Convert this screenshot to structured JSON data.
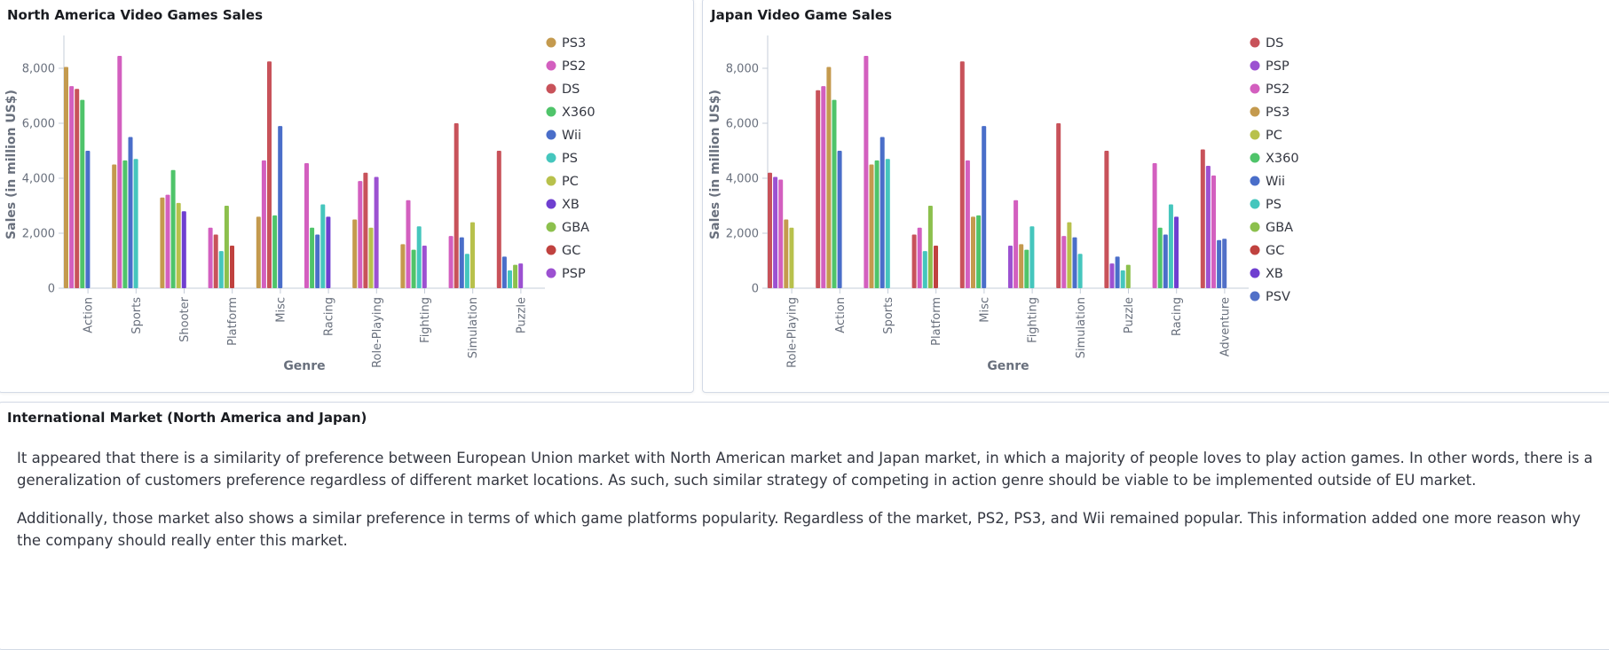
{
  "panels": {
    "na_title": "North America Video Games Sales",
    "jp_title": "Japan Video Game Sales",
    "intl_title": "International Market (North America and Japan)",
    "intl_paragraphs": [
      "It appeared that there is a similarity of preference between European Union market with North American market and Japan market, in which a majority of people loves to play action games. In other words, there is a generalization of customers preference regardless of different market locations. As such, such similar strategy of competing in action genre should be viable to be implemented outside of EU market.",
      "Additionally, those market also shows a similar preference in terms of which game platforms popularity. Regardless of the market, PS2, PS3, and Wii remained popular. This information added one more reason why the company should really enter this market."
    ]
  },
  "colors": {
    "PS3": "#c49a4e",
    "PS2": "#d35fbf",
    "DS": "#c8525a",
    "X360": "#4fc46a",
    "Wii": "#4a6ec9",
    "PS": "#45c6bd",
    "PC": "#b8c14c",
    "XB": "#6f3fd0",
    "GBA": "#8cc04d",
    "GC": "#c0423f",
    "PSP": "#9c51d1",
    "PSV": "#5170c8"
  },
  "chart_data": [
    {
      "type": "bar",
      "title": "North America Video Games Sales",
      "xlabel": "Genre",
      "ylabel": "Sales (in million US$)",
      "ylim": [
        0,
        9000
      ],
      "yticks": [
        0,
        2000,
        4000,
        6000,
        8000
      ],
      "ytick_labels": [
        "0",
        "2,000",
        "4,000",
        "6,000",
        "8,000"
      ],
      "categories": [
        "Action",
        "Sports",
        "Shooter",
        "Platform",
        "Misc",
        "Racing",
        "Role-Playing",
        "Fighting",
        "Simulation",
        "Puzzle"
      ],
      "legend": [
        "PS3",
        "PS2",
        "DS",
        "X360",
        "Wii",
        "PS",
        "PC",
        "XB",
        "GBA",
        "GC",
        "PSP"
      ],
      "legend_position": "right",
      "groups": [
        [
          [
            "PS3",
            8050
          ],
          [
            "PS2",
            7350
          ],
          [
            "DS",
            7250
          ],
          [
            "X360",
            6850
          ],
          [
            "Wii",
            5000
          ]
        ],
        [
          [
            "PS3",
            4500
          ],
          [
            "PS2",
            8450
          ],
          [
            "X360",
            4650
          ],
          [
            "Wii",
            5500
          ],
          [
            "PS",
            4700
          ]
        ],
        [
          [
            "PS3",
            3300
          ],
          [
            "PS2",
            3400
          ],
          [
            "X360",
            4300
          ],
          [
            "PC",
            3100
          ],
          [
            "XB",
            2800
          ]
        ],
        [
          [
            "PS2",
            2200
          ],
          [
            "DS",
            1950
          ],
          [
            "PS",
            1350
          ],
          [
            "GBA",
            3000
          ],
          [
            "GC",
            1550
          ]
        ],
        [
          [
            "PS3",
            2600
          ],
          [
            "PS2",
            4650
          ],
          [
            "DS",
            8250
          ],
          [
            "X360",
            2650
          ],
          [
            "Wii",
            5900
          ]
        ],
        [
          [
            "PS2",
            4550
          ],
          [
            "X360",
            2200
          ],
          [
            "Wii",
            1950
          ],
          [
            "PS",
            3050
          ],
          [
            "XB",
            2600
          ]
        ],
        [
          [
            "PS3",
            2500
          ],
          [
            "PS2",
            3900
          ],
          [
            "DS",
            4200
          ],
          [
            "PC",
            2200
          ],
          [
            "PSP",
            4050
          ]
        ],
        [
          [
            "PS3",
            1600
          ],
          [
            "PS2",
            3200
          ],
          [
            "X360",
            1400
          ],
          [
            "PS",
            2250
          ],
          [
            "PSP",
            1550
          ]
        ],
        [
          [
            "PS2",
            1900
          ],
          [
            "DS",
            6000
          ],
          [
            "Wii",
            1850
          ],
          [
            "PS",
            1250
          ],
          [
            "PC",
            2400
          ]
        ],
        [
          [
            "DS",
            5000
          ],
          [
            "Wii",
            1150
          ],
          [
            "PS",
            650
          ],
          [
            "GBA",
            850
          ],
          [
            "PSP",
            900
          ]
        ]
      ]
    },
    {
      "type": "bar",
      "title": "Japan Video Game Sales",
      "xlabel": "Genre",
      "ylabel": "Sales (in million US$)",
      "ylim": [
        0,
        9000
      ],
      "yticks": [
        0,
        2000,
        4000,
        6000,
        8000
      ],
      "ytick_labels": [
        "0",
        "2,000",
        "4,000",
        "6,000",
        "8,000"
      ],
      "categories": [
        "Role-Playing",
        "Action",
        "Sports",
        "Platform",
        "Misc",
        "Fighting",
        "Simulation",
        "Puzzle",
        "Racing",
        "Adventure"
      ],
      "legend": [
        "DS",
        "PSP",
        "PS2",
        "PS3",
        "PC",
        "X360",
        "Wii",
        "PS",
        "GBA",
        "GC",
        "XB",
        "PSV"
      ],
      "legend_position": "right",
      "groups": [
        [
          [
            "DS",
            4200
          ],
          [
            "PSP",
            4050
          ],
          [
            "PS2",
            3950
          ],
          [
            "PS3",
            2500
          ],
          [
            "PC",
            2200
          ]
        ],
        [
          [
            "DS",
            7200
          ],
          [
            "PS2",
            7350
          ],
          [
            "PS3",
            8050
          ],
          [
            "X360",
            6850
          ],
          [
            "Wii",
            5000
          ]
        ],
        [
          [
            "PS2",
            8450
          ],
          [
            "PS3",
            4500
          ],
          [
            "X360",
            4650
          ],
          [
            "Wii",
            5500
          ],
          [
            "PS",
            4700
          ]
        ],
        [
          [
            "DS",
            1950
          ],
          [
            "PS2",
            2200
          ],
          [
            "PS",
            1350
          ],
          [
            "GBA",
            3000
          ],
          [
            "GC",
            1550
          ]
        ],
        [
          [
            "DS",
            8250
          ],
          [
            "PS2",
            4650
          ],
          [
            "PS3",
            2600
          ],
          [
            "X360",
            2650
          ],
          [
            "Wii",
            5900
          ]
        ],
        [
          [
            "PSP",
            1550
          ],
          [
            "PS2",
            3200
          ],
          [
            "PS3",
            1600
          ],
          [
            "X360",
            1400
          ],
          [
            "PS",
            2250
          ]
        ],
        [
          [
            "DS",
            6000
          ],
          [
            "PS2",
            1900
          ],
          [
            "PC",
            2400
          ],
          [
            "Wii",
            1850
          ],
          [
            "PS",
            1250
          ]
        ],
        [
          [
            "DS",
            5000
          ],
          [
            "PSP",
            900
          ],
          [
            "Wii",
            1150
          ],
          [
            "PS",
            650
          ],
          [
            "GBA",
            850
          ]
        ],
        [
          [
            "PS2",
            4550
          ],
          [
            "X360",
            2200
          ],
          [
            "Wii",
            1950
          ],
          [
            "PS",
            3050
          ],
          [
            "XB",
            2600
          ]
        ],
        [
          [
            "DS",
            5050
          ],
          [
            "PSP",
            4450
          ],
          [
            "PS2",
            4100
          ],
          [
            "Wii",
            1750
          ],
          [
            "PSV",
            1800
          ]
        ]
      ]
    }
  ]
}
